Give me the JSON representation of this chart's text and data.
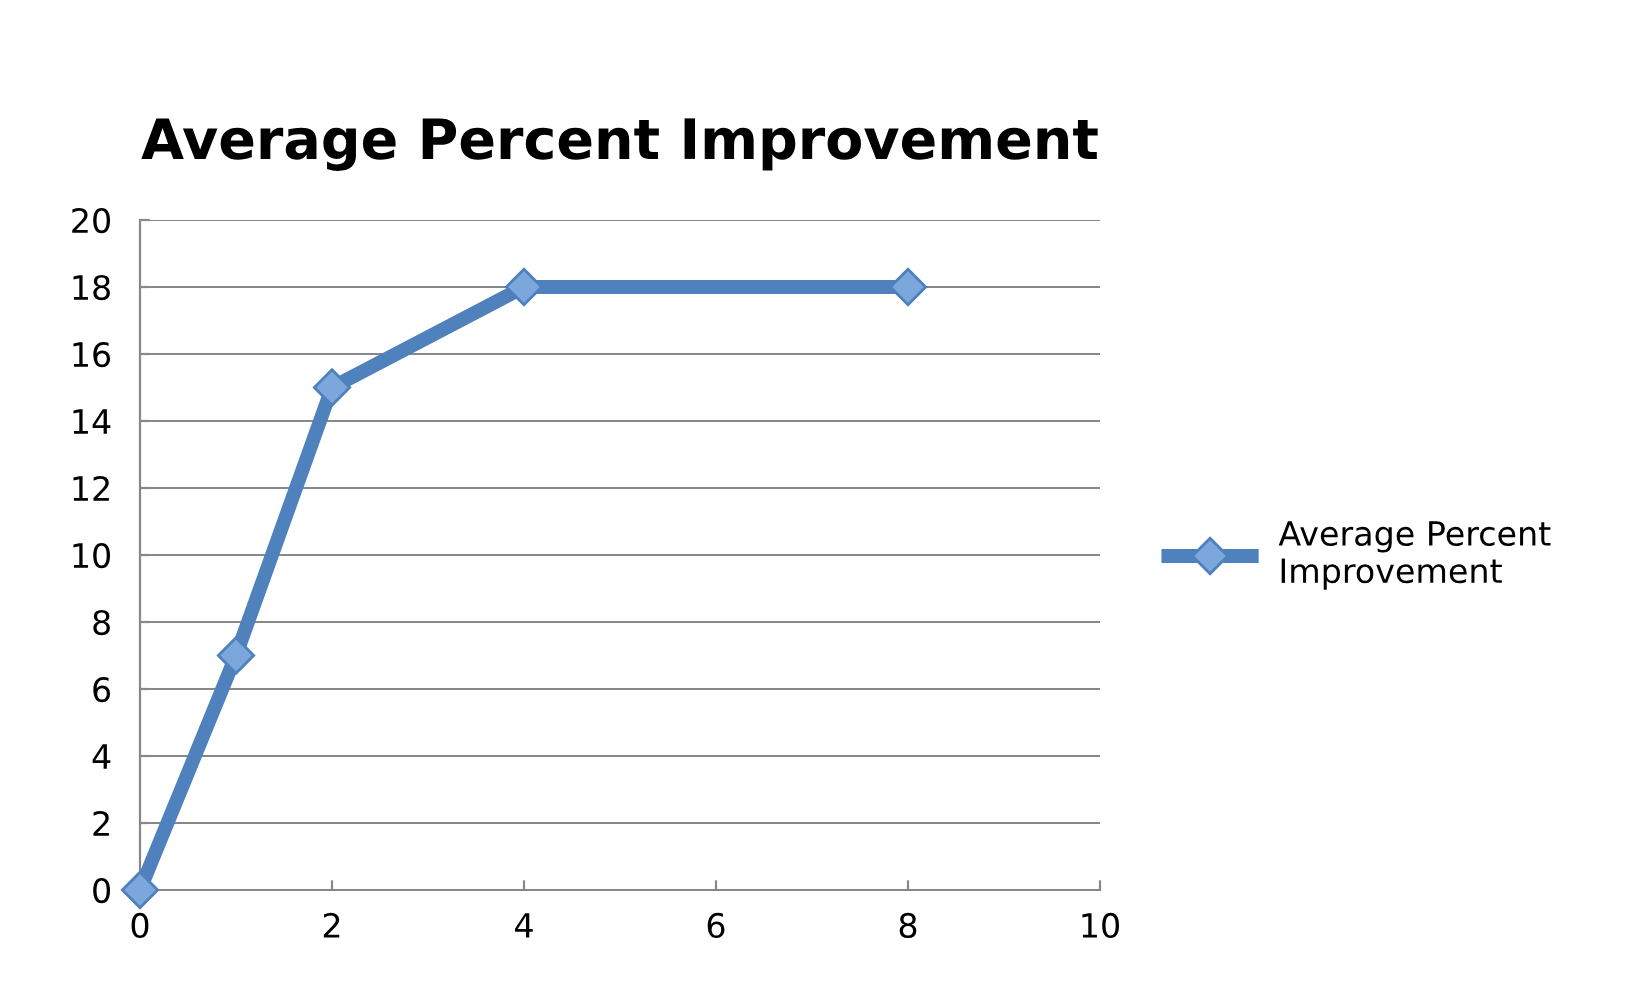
{
  "chart_data": {
    "type": "line",
    "title": "Average Percent Improvement",
    "x": [
      0,
      1,
      2,
      4,
      8
    ],
    "series": [
      {
        "name": "Average Percent Improvement",
        "color": "#4f81bd",
        "values": [
          0,
          7,
          15,
          18,
          18
        ]
      }
    ],
    "xlim": [
      0,
      10
    ],
    "xticks": [
      0,
      2,
      4,
      6,
      8,
      10
    ],
    "ylim": [
      0,
      20
    ],
    "yticks": [
      0,
      2,
      4,
      6,
      8,
      10,
      12,
      14,
      16,
      18,
      20
    ],
    "grid": "y",
    "legend": "right",
    "marker": "diamond",
    "line_style": "solid"
  }
}
